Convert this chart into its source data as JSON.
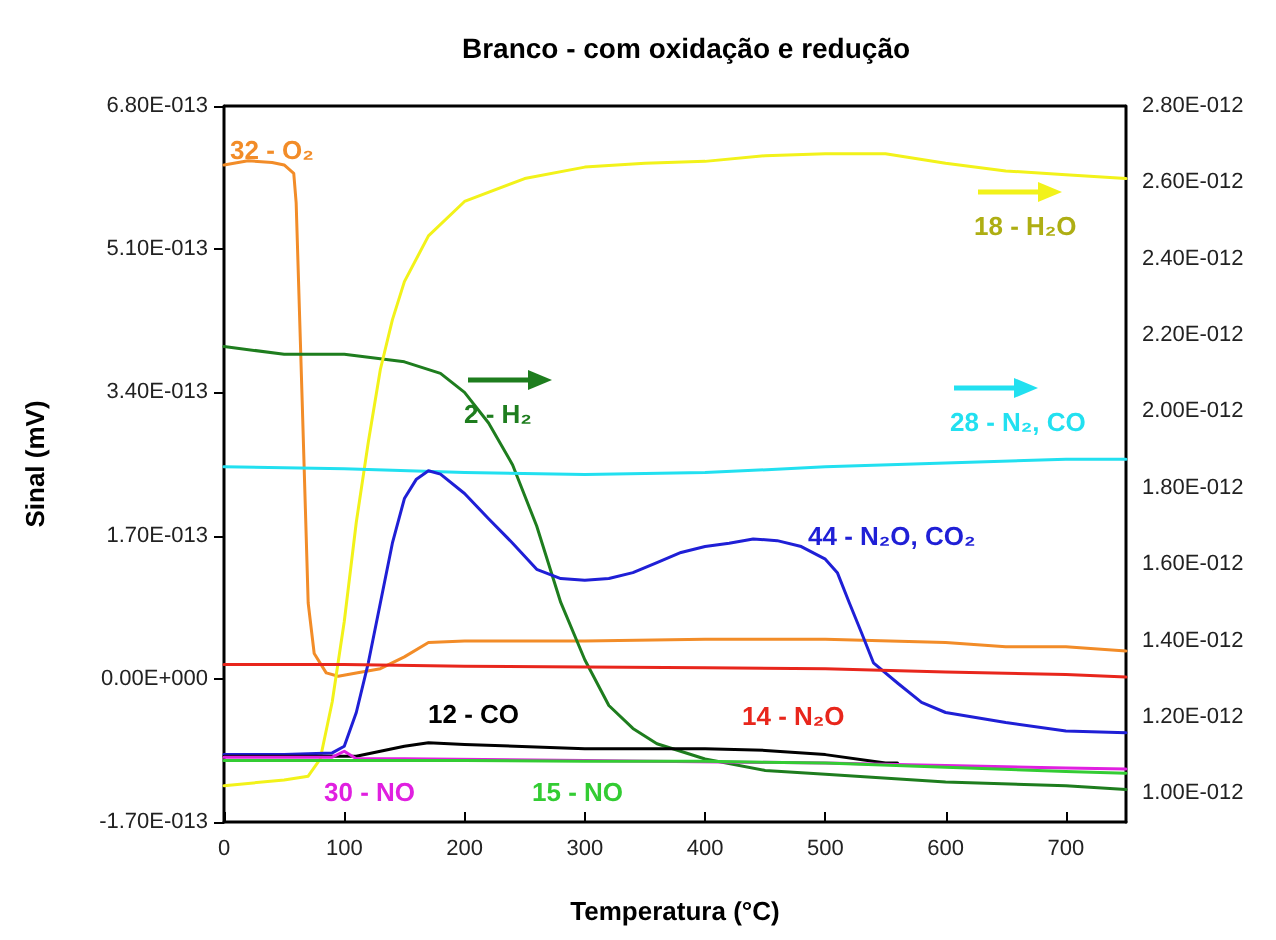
{
  "chart_data": {
    "type": "line",
    "title": "Branco - com oxidação e redução",
    "xlabel": "Temperatura (°C)",
    "ylabel": "Sinal (mV)",
    "xlim": [
      0,
      750
    ],
    "xticks": [
      0,
      100,
      200,
      300,
      400,
      500,
      600,
      700
    ],
    "ylim": [
      -1.7e-13,
      6.8e-13
    ],
    "yticks": [
      {
        "value": -1.7e-13,
        "label": "-1.70E-013"
      },
      {
        "value": 0,
        "label": "0.00E+000"
      },
      {
        "value": 1.7e-13,
        "label": "1.70E-013"
      },
      {
        "value": 3.4e-13,
        "label": "3.40E-013"
      },
      {
        "value": 5.1e-13,
        "label": "5.10E-013"
      },
      {
        "value": 6.8e-13,
        "label": "6.80E-013"
      }
    ],
    "y2lim": [
      9.25e-13,
      2.8e-12
    ],
    "y2ticks": [
      {
        "value": 1e-12,
        "label": "1.00E-012"
      },
      {
        "value": 1.2e-12,
        "label": "1.20E-012"
      },
      {
        "value": 1.4e-12,
        "label": "1.40E-012"
      },
      {
        "value": 1.6e-12,
        "label": "1.60E-012"
      },
      {
        "value": 1.8e-12,
        "label": "1.80E-012"
      },
      {
        "value": 2e-12,
        "label": "2.00E-012"
      },
      {
        "value": 2.2e-12,
        "label": "2.20E-012"
      },
      {
        "value": 2.4e-12,
        "label": "2.40E-012"
      },
      {
        "value": 2.6e-12,
        "label": "2.60E-012"
      },
      {
        "value": 2.8e-12,
        "label": "2.80E-012"
      }
    ],
    "grid": false,
    "marker": "none",
    "line_style": "solid",
    "series": [
      {
        "color": "#f28c28",
        "x": [
          0,
          20,
          40,
          50,
          58,
          60,
          65,
          70,
          75,
          85,
          95,
          110,
          130,
          150,
          170,
          200,
          300,
          400,
          500,
          600,
          650,
          700,
          750
        ],
        "values": [
          6.1e-13,
          6.15e-13,
          6.13e-13,
          6.1e-13,
          6e-13,
          5.65e-13,
          3.3e-13,
          9e-14,
          3e-14,
          7e-15,
          3e-15,
          7e-15,
          1.2e-14,
          2.6e-14,
          4.3e-14,
          4.5e-14,
          4.5e-14,
          4.7e-14,
          4.7e-14,
          4.3e-14,
          3.8e-14,
          3.8e-14,
          3.3e-14
        ]
      },
      {
        "color": "#1e7d1e",
        "axis": "y2",
        "x": [
          0,
          50,
          100,
          150,
          180,
          200,
          220,
          240,
          260,
          280,
          300,
          320,
          340,
          360,
          400,
          450,
          500,
          600,
          700,
          750
        ],
        "values": [
          2.17e-12,
          2.15e-12,
          2.15e-12,
          2.13e-12,
          2.1e-12,
          2.05e-12,
          1.97e-12,
          1.86e-12,
          1.7e-12,
          1.5e-12,
          1.35e-12,
          1.23e-12,
          1.17e-12,
          1.13e-12,
          1.09e-12,
          1.06e-12,
          1.05e-12,
          1.03e-12,
          1.02e-12,
          1.01e-12
        ]
      },
      {
        "color": "#f2f21a",
        "axis": "y2",
        "x": [
          0,
          50,
          70,
          80,
          90,
          100,
          110,
          120,
          130,
          140,
          150,
          170,
          200,
          250,
          300,
          350,
          400,
          450,
          500,
          550,
          600,
          650,
          700,
          750
        ],
        "values": [
          1.02e-12,
          1.035e-12,
          1.045e-12,
          1.09e-12,
          1.24e-12,
          1.45e-12,
          1.71e-12,
          1.92e-12,
          2.11e-12,
          2.24e-12,
          2.34e-12,
          2.46e-12,
          2.55e-12,
          2.61e-12,
          2.64e-12,
          2.65e-12,
          2.655e-12,
          2.67e-12,
          2.675e-12,
          2.675e-12,
          2.65e-12,
          2.63e-12,
          2.62e-12,
          2.61e-12
        ]
      },
      {
        "color": "#22e0f0",
        "axis": "y2",
        "x": [
          0,
          100,
          200,
          300,
          400,
          500,
          600,
          700,
          750
        ],
        "values": [
          1.855e-12,
          1.85e-12,
          1.84e-12,
          1.835e-12,
          1.84e-12,
          1.855e-12,
          1.865e-12,
          1.875e-12,
          1.875e-12
        ]
      },
      {
        "color": "#1f1fd6",
        "x": [
          0,
          50,
          90,
          100,
          110,
          120,
          130,
          140,
          150,
          160,
          170,
          180,
          200,
          220,
          240,
          260,
          280,
          300,
          320,
          340,
          360,
          380,
          400,
          420,
          440,
          460,
          480,
          500,
          510,
          520,
          530,
          540,
          560,
          580,
          600,
          650,
          700,
          750
        ],
        "values": [
          -9e-14,
          -9e-14,
          -8.8e-14,
          -8e-14,
          -4e-14,
          1.9e-14,
          9e-14,
          1.61e-13,
          2.14e-13,
          2.37e-13,
          2.47e-13,
          2.43e-13,
          2.2e-13,
          1.9e-13,
          1.61e-13,
          1.3e-13,
          1.19e-13,
          1.17e-13,
          1.19e-13,
          1.26e-13,
          1.38e-13,
          1.5e-13,
          1.57e-13,
          1.61e-13,
          1.66e-13,
          1.64e-13,
          1.57e-13,
          1.42e-13,
          1.26e-13,
          9e-14,
          5.5e-14,
          1.9e-14,
          -5e-15,
          -2.8e-14,
          -4e-14,
          -5.2e-14,
          -6.2e-14,
          -6.4e-14
        ]
      },
      {
        "color": "#000000",
        "x": [
          0,
          110,
          130,
          150,
          170,
          200,
          300,
          400,
          450,
          500,
          550,
          560
        ],
        "values": [
          -9.2e-14,
          -9.2e-14,
          -8.6e-14,
          -8e-14,
          -7.6e-14,
          -7.8e-14,
          -8.3e-14,
          -8.3e-14,
          -8.5e-14,
          -9e-14,
          -1e-13,
          -1e-13
        ]
      },
      {
        "color": "#e8261c",
        "x": [
          0,
          100,
          200,
          300,
          400,
          500,
          600,
          700,
          750
        ],
        "values": [
          1.7e-14,
          1.7e-14,
          1.5e-14,
          1.4e-14,
          1.3e-14,
          1.2e-14,
          8e-15,
          5e-15,
          2e-15
        ]
      },
      {
        "color": "#e020e0",
        "x": [
          0,
          90,
          100,
          110,
          150,
          300,
          500,
          600,
          700,
          750
        ],
        "values": [
          -9.3e-14,
          -9.3e-14,
          -8.6e-14,
          -9.5e-14,
          -9.5e-14,
          -9.7e-14,
          -1e-13,
          -1.03e-13,
          -1.06e-13,
          -1.07e-13
        ]
      },
      {
        "color": "#33cc33",
        "x": [
          0,
          100,
          200,
          300,
          400,
          500,
          600,
          700,
          750
        ],
        "values": [
          -9.7e-14,
          -9.7e-14,
          -9.7e-14,
          -9.8e-14,
          -9.8e-14,
          -1e-13,
          -1.05e-13,
          -1.1e-13,
          -1.12e-13
        ]
      }
    ],
    "annotations": [
      "32 - O₂",
      "2 - H₂",
      "18 - H₂O",
      "28 - N₂, CO",
      "44 - N₂O, CO₂",
      "12 - CO",
      "14 - N₂O",
      "30 - NO",
      "15 - NO"
    ]
  }
}
